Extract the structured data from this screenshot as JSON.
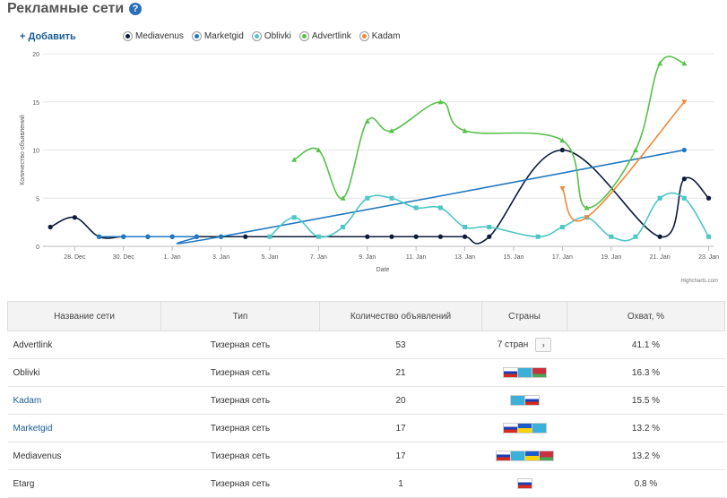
{
  "header": {
    "title": "Рекламные сети",
    "help_icon": "?",
    "add_label": "+ Добавить"
  },
  "chart_data": {
    "type": "line",
    "xlabel": "Date",
    "ylabel": "Количество объявлений",
    "ylim": [
      0,
      20
    ],
    "yticks": [
      0,
      5,
      10,
      15,
      20
    ],
    "xticks": [
      "28. Dec",
      "30. Dec",
      "1. Jan",
      "3. Jan",
      "5. Jan",
      "7. Jan",
      "9. Jan",
      "11. Jan",
      "13. Jan",
      "15. Jan",
      "17. Jan",
      "19. Jan",
      "21. Jan",
      "23. Jan"
    ],
    "x_day_offsets_note": "",
    "series": [
      {
        "name": "Mediavenus",
        "color": "#0d1b3a",
        "marker": "circle",
        "points": [
          [
            "27. Dec",
            2
          ],
          [
            "28. Dec",
            3
          ],
          [
            "29. Dec",
            1
          ],
          [
            "30. Dec",
            1
          ],
          [
            "31. Dec",
            1
          ],
          [
            "1. Jan",
            1
          ],
          [
            "2. Jan",
            1
          ],
          [
            "3. Jan",
            1
          ],
          [
            "4. Jan",
            1
          ],
          [
            "9. Jan",
            1
          ],
          [
            "10. Jan",
            1
          ],
          [
            "11. Jan",
            1
          ],
          [
            "12. Jan",
            1
          ],
          [
            "13. Jan",
            1
          ],
          [
            "14. Jan",
            1
          ],
          [
            "17. Jan",
            10
          ],
          [
            "21. Jan",
            1
          ],
          [
            "22. Jan",
            7
          ],
          [
            "23. Jan",
            5
          ]
        ]
      },
      {
        "name": "Marketgid",
        "color": "#1f78c1",
        "marker": "circle",
        "points": [
          [
            "29. Dec",
            1
          ],
          [
            "30. Dec",
            1
          ],
          [
            "31. Dec",
            1
          ],
          [
            "1. Jan",
            1
          ],
          [
            "2. Jan",
            1
          ],
          [
            "3. Jan",
            1
          ],
          [
            "22. Jan",
            10
          ]
        ]
      },
      {
        "name": "Oblivki",
        "color": "#4dc6c6",
        "marker": "square",
        "points": [
          [
            "5. Jan",
            1
          ],
          [
            "6. Jan",
            3
          ],
          [
            "7. Jan",
            1
          ],
          [
            "8. Jan",
            2
          ],
          [
            "9. Jan",
            5
          ],
          [
            "10. Jan",
            5
          ],
          [
            "11. Jan",
            4
          ],
          [
            "12. Jan",
            4
          ],
          [
            "13. Jan",
            2
          ],
          [
            "14. Jan",
            2
          ],
          [
            "16. Jan",
            1
          ],
          [
            "17. Jan",
            2
          ],
          [
            "18. Jan",
            3
          ],
          [
            "19. Jan",
            1
          ],
          [
            "20. Jan",
            1
          ],
          [
            "21. Jan",
            5
          ],
          [
            "22. Jan",
            5
          ],
          [
            "23. Jan",
            1
          ]
        ]
      },
      {
        "name": "Advertlink",
        "color": "#55c24a",
        "marker": "triangle",
        "points": [
          [
            "6. Jan",
            9
          ],
          [
            "7. Jan",
            10
          ],
          [
            "8. Jan",
            5
          ],
          [
            "9. Jan",
            13
          ],
          [
            "10. Jan",
            12
          ],
          [
            "12. Jan",
            15
          ],
          [
            "13. Jan",
            12
          ],
          [
            "17. Jan",
            11
          ],
          [
            "18. Jan",
            4
          ],
          [
            "20. Jan",
            10
          ],
          [
            "21. Jan",
            19
          ],
          [
            "22. Jan",
            19
          ]
        ]
      },
      {
        "name": "Kadam",
        "color": "#f0883a",
        "marker": "triangle-down",
        "points": [
          [
            "17. Jan",
            6
          ],
          [
            "18. Jan",
            3
          ],
          [
            "22. Jan",
            15
          ]
        ]
      }
    ],
    "credits": "Highcharts.com"
  },
  "table": {
    "headers": [
      "Название сети",
      "Тип",
      "Количество объявлений",
      "Страны",
      "Охват, %"
    ],
    "rows": [
      {
        "name": "Advertlink",
        "type": "Тизерная сеть",
        "count": "53",
        "countries_text": "7 стран",
        "flags": [],
        "reach": "41.1 %",
        "link": false
      },
      {
        "name": "Oblivki",
        "type": "Тизерная сеть",
        "count": "21",
        "countries_text": "",
        "flags": [
          "ru",
          "kz",
          "by"
        ],
        "reach": "16.3 %",
        "link": false
      },
      {
        "name": "Kadam",
        "type": "Тизерная сеть",
        "count": "20",
        "countries_text": "",
        "flags": [
          "kz",
          "ru"
        ],
        "reach": "15.5 %",
        "link": true
      },
      {
        "name": "Marketgid",
        "type": "Тизерная сеть",
        "count": "17",
        "countries_text": "",
        "flags": [
          "ru",
          "ua",
          "kz"
        ],
        "reach": "13.2 %",
        "link": true
      },
      {
        "name": "Mediavenus",
        "type": "Тизерная сеть",
        "count": "17",
        "countries_text": "",
        "flags": [
          "ru",
          "kz",
          "ua",
          "by"
        ],
        "reach": "13.2 %",
        "link": false
      },
      {
        "name": "Etarg",
        "type": "Тизерная сеть",
        "count": "1",
        "countries_text": "",
        "flags": [
          "ru"
        ],
        "reach": "0.8 %",
        "link": false
      }
    ]
  }
}
